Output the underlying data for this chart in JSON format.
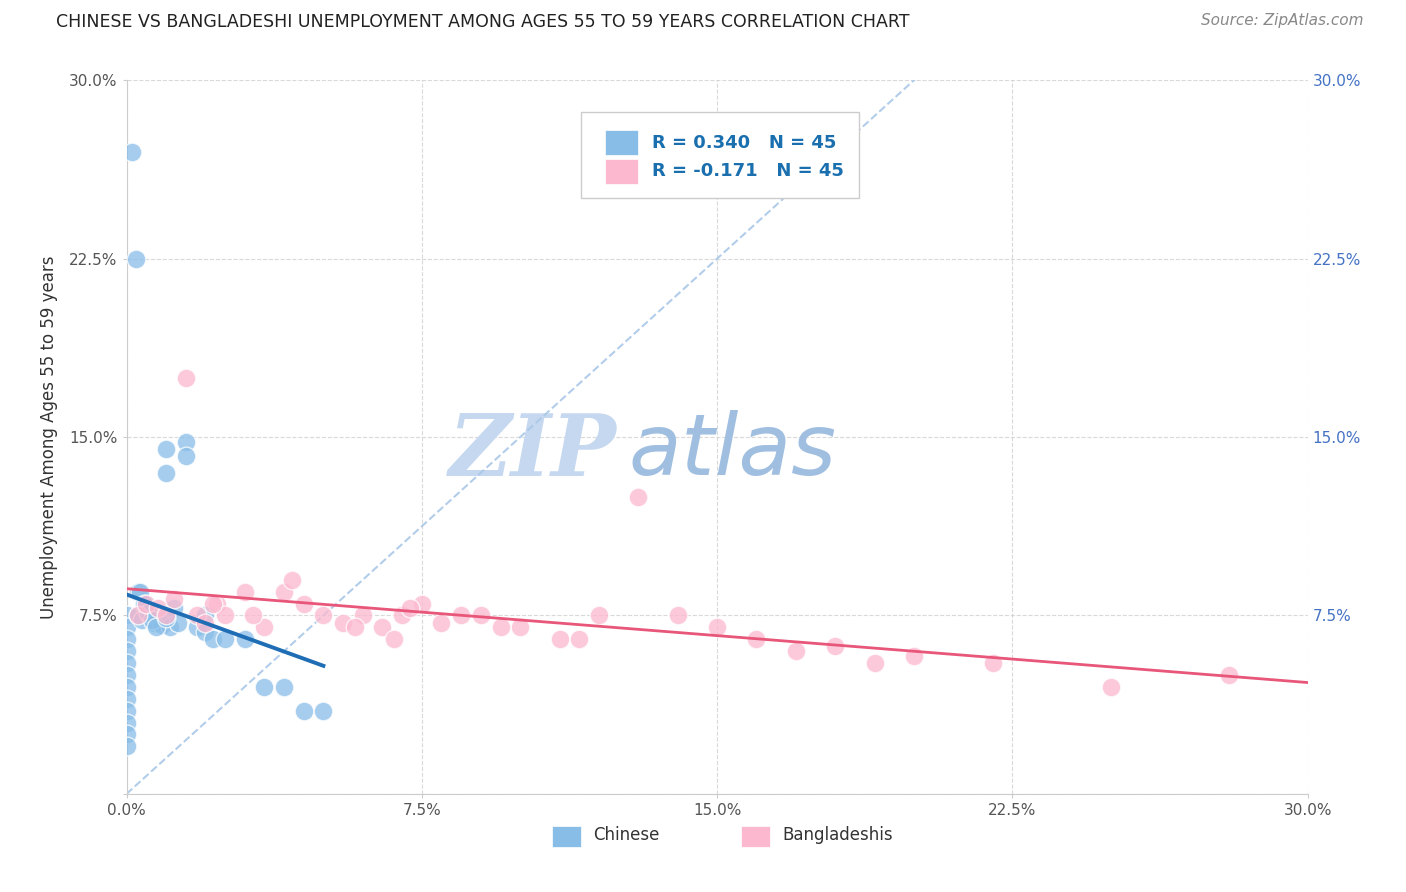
{
  "title": "CHINESE VS BANGLADESHI UNEMPLOYMENT AMONG AGES 55 TO 59 YEARS CORRELATION CHART",
  "source": "Source: ZipAtlas.com",
  "ylabel": "Unemployment Among Ages 55 to 59 years",
  "x_tick_labels": [
    "0.0%",
    "7.5%",
    "15.0%",
    "22.5%",
    "30.0%"
  ],
  "y_tick_labels": [
    "",
    "7.5%",
    "15.0%",
    "22.5%",
    "30.0%"
  ],
  "y_tick_labels_right": [
    "",
    "7.5%",
    "15.0%",
    "22.5%",
    "30.0%"
  ],
  "x_tick_vals": [
    0.0,
    7.5,
    15.0,
    22.5,
    30.0
  ],
  "y_tick_vals": [
    0.0,
    7.5,
    15.0,
    22.5,
    30.0
  ],
  "xlim": [
    -0.5,
    30.0
  ],
  "ylim": [
    -1.0,
    30.0
  ],
  "legend_labels": [
    "Chinese",
    "Bangladeshis"
  ],
  "legend_R": [
    "R = 0.340",
    "R = -0.171"
  ],
  "legend_N": [
    "N = 45",
    "N = 45"
  ],
  "chinese_color": "#88bde8",
  "bangladeshi_color": "#fcb8ce",
  "chinese_line_color": "#1f6eb5",
  "bangladeshi_line_color": "#e8567a",
  "dashed_line_color": "#aac8e8",
  "background_color": "#ffffff",
  "grid_color": "#d0d0d0",
  "title_color": "#222222",
  "source_color": "#888888",
  "watermark_zip_color": "#c5d8f0",
  "watermark_atlas_color": "#a0bfe0",
  "right_axis_color": "#4472c4",
  "chinese_x": [
    0.0,
    0.0,
    0.0,
    0.0,
    0.0,
    0.0,
    0.0,
    0.0,
    0.0,
    0.0,
    0.0,
    0.0,
    0.3,
    0.3,
    0.4,
    0.5,
    0.6,
    0.7,
    0.8,
    0.9,
    1.0,
    1.0,
    1.1,
    1.2,
    1.3,
    1.5,
    1.8,
    2.0,
    2.0,
    2.2,
    2.5,
    3.0,
    3.5,
    4.0,
    4.5,
    5.0,
    0.15,
    0.25,
    0.35,
    0.45,
    0.55,
    0.65,
    0.75,
    1.0,
    1.5
  ],
  "chinese_y": [
    7.5,
    7.0,
    6.5,
    6.0,
    5.5,
    5.0,
    4.5,
    4.0,
    3.5,
    3.0,
    2.5,
    2.0,
    8.5,
    7.5,
    7.3,
    8.0,
    7.5,
    7.2,
    7.4,
    7.1,
    14.5,
    13.5,
    7.0,
    7.8,
    7.2,
    14.8,
    7.0,
    7.5,
    6.8,
    6.5,
    6.5,
    6.5,
    4.5,
    4.5,
    3.5,
    3.5,
    27.0,
    22.5,
    8.5,
    8.0,
    7.6,
    7.3,
    7.0,
    7.4,
    14.2
  ],
  "bangladeshi_x": [
    0.3,
    0.5,
    0.8,
    1.0,
    1.2,
    1.5,
    1.8,
    2.0,
    2.3,
    2.5,
    3.0,
    3.5,
    4.0,
    4.5,
    5.0,
    5.5,
    6.0,
    6.5,
    7.0,
    7.5,
    8.0,
    8.5,
    9.0,
    10.0,
    11.0,
    12.0,
    13.0,
    14.0,
    15.0,
    16.0,
    17.0,
    18.0,
    19.0,
    20.0,
    22.0,
    25.0,
    28.0,
    3.2,
    4.2,
    5.8,
    7.2,
    9.5,
    11.5,
    2.2,
    6.8
  ],
  "bangladeshi_y": [
    7.5,
    8.0,
    7.8,
    7.5,
    8.2,
    17.5,
    7.5,
    7.2,
    8.0,
    7.5,
    8.5,
    7.0,
    8.5,
    8.0,
    7.5,
    7.2,
    7.5,
    7.0,
    7.5,
    8.0,
    7.2,
    7.5,
    7.5,
    7.0,
    6.5,
    7.5,
    12.5,
    7.5,
    7.0,
    6.5,
    6.0,
    6.2,
    5.5,
    5.8,
    5.5,
    4.5,
    5.0,
    7.5,
    9.0,
    7.0,
    7.8,
    7.0,
    6.5,
    8.0,
    6.5
  ]
}
